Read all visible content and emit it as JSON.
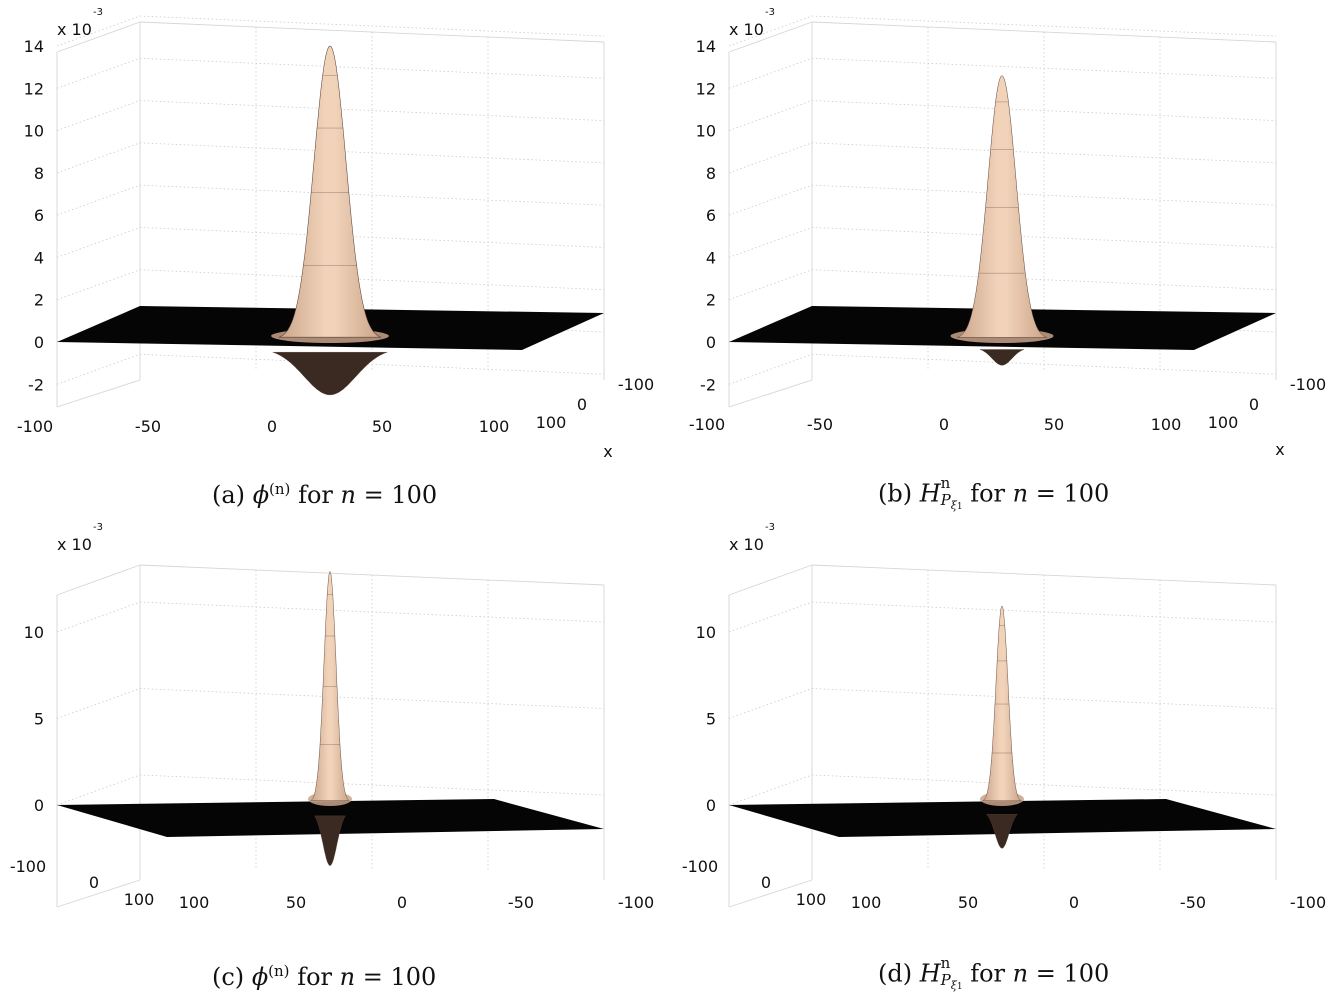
{
  "chart_data": [
    {
      "type": "surface",
      "panel": "a",
      "caption": "(a) ϕ(n) for n = 100",
      "z_scale_label": "x 10",
      "z_scale_exponent": "-3",
      "z_ticks": [
        "14",
        "12",
        "10",
        "8",
        "6",
        "4",
        "2",
        "0",
        "-2"
      ],
      "x_ticks": [
        "-100",
        "-50",
        "0",
        "50",
        "100"
      ],
      "y_ticks": [
        "-100",
        "0",
        "100"
      ],
      "y_axis_label": "x",
      "series": [
        {
          "peak": 14.0,
          "trough": -2.5
        }
      ]
    },
    {
      "type": "surface",
      "panel": "b",
      "caption": "(b) H^n_{P_ξ1} for n = 100",
      "z_scale_label": "x 10",
      "z_scale_exponent": "-3",
      "z_ticks": [
        "14",
        "12",
        "10",
        "8",
        "6",
        "4",
        "2",
        "0",
        "-2"
      ],
      "x_ticks": [
        "-100",
        "-50",
        "0",
        "50",
        "100"
      ],
      "y_ticks": [
        "-100",
        "0",
        "100"
      ],
      "y_axis_label": "x",
      "series": [
        {
          "peak": 12.6,
          "trough": -1.1
        }
      ]
    },
    {
      "type": "surface",
      "panel": "c",
      "caption": "(c) ϕ(n) for n = 100",
      "z_scale_label": "x 10",
      "z_scale_exponent": "-3",
      "z_ticks": [
        "10",
        "5",
        "0"
      ],
      "x_ticks": [
        "100",
        "50",
        "0",
        "-50",
        "-100"
      ],
      "y_ticks": [
        "-100",
        "0",
        "100"
      ],
      "series": [
        {
          "peak": 13.5,
          "trough": -3.5
        }
      ]
    },
    {
      "type": "surface",
      "panel": "d",
      "caption": "(d) H^n_{P_ξ1} for n = 100",
      "z_scale_label": "x 10",
      "z_scale_exponent": "-3",
      "z_ticks": [
        "10",
        "5",
        "0"
      ],
      "x_ticks": [
        "100",
        "50",
        "0",
        "-50",
        "-100"
      ],
      "y_ticks": [
        "-100",
        "0",
        "100"
      ],
      "series": [
        {
          "peak": 11.5,
          "trough": -2.5
        }
      ]
    }
  ],
  "captions": {
    "a": {
      "prefix": "(a)",
      "symbol": "ϕ",
      "sup": "(n)",
      "suffix": "for",
      "var": "n",
      "eq": "= 100"
    },
    "b": {
      "prefix": "(b)",
      "symbol": "H",
      "sup": "n",
      "sub": "P",
      "subsub": "ξ",
      "subsubsub": "1",
      "suffix": "for",
      "var": "n",
      "eq": "= 100"
    },
    "c": {
      "prefix": "(c)",
      "symbol": "ϕ",
      "sup": "(n)",
      "suffix": "for",
      "var": "n",
      "eq": "= 100"
    },
    "d": {
      "prefix": "(d)",
      "symbol": "H",
      "sup": "n",
      "sub": "P",
      "subsub": "ξ",
      "subsubsub": "1",
      "suffix": "for",
      "var": "n",
      "eq": "= 100"
    }
  },
  "colors": {
    "plane": "#050505",
    "surface_light": "#f1d3b9",
    "surface_mid": "#c9a38a",
    "surface_dark": "#3a2a22",
    "mesh": "#5a4337"
  }
}
